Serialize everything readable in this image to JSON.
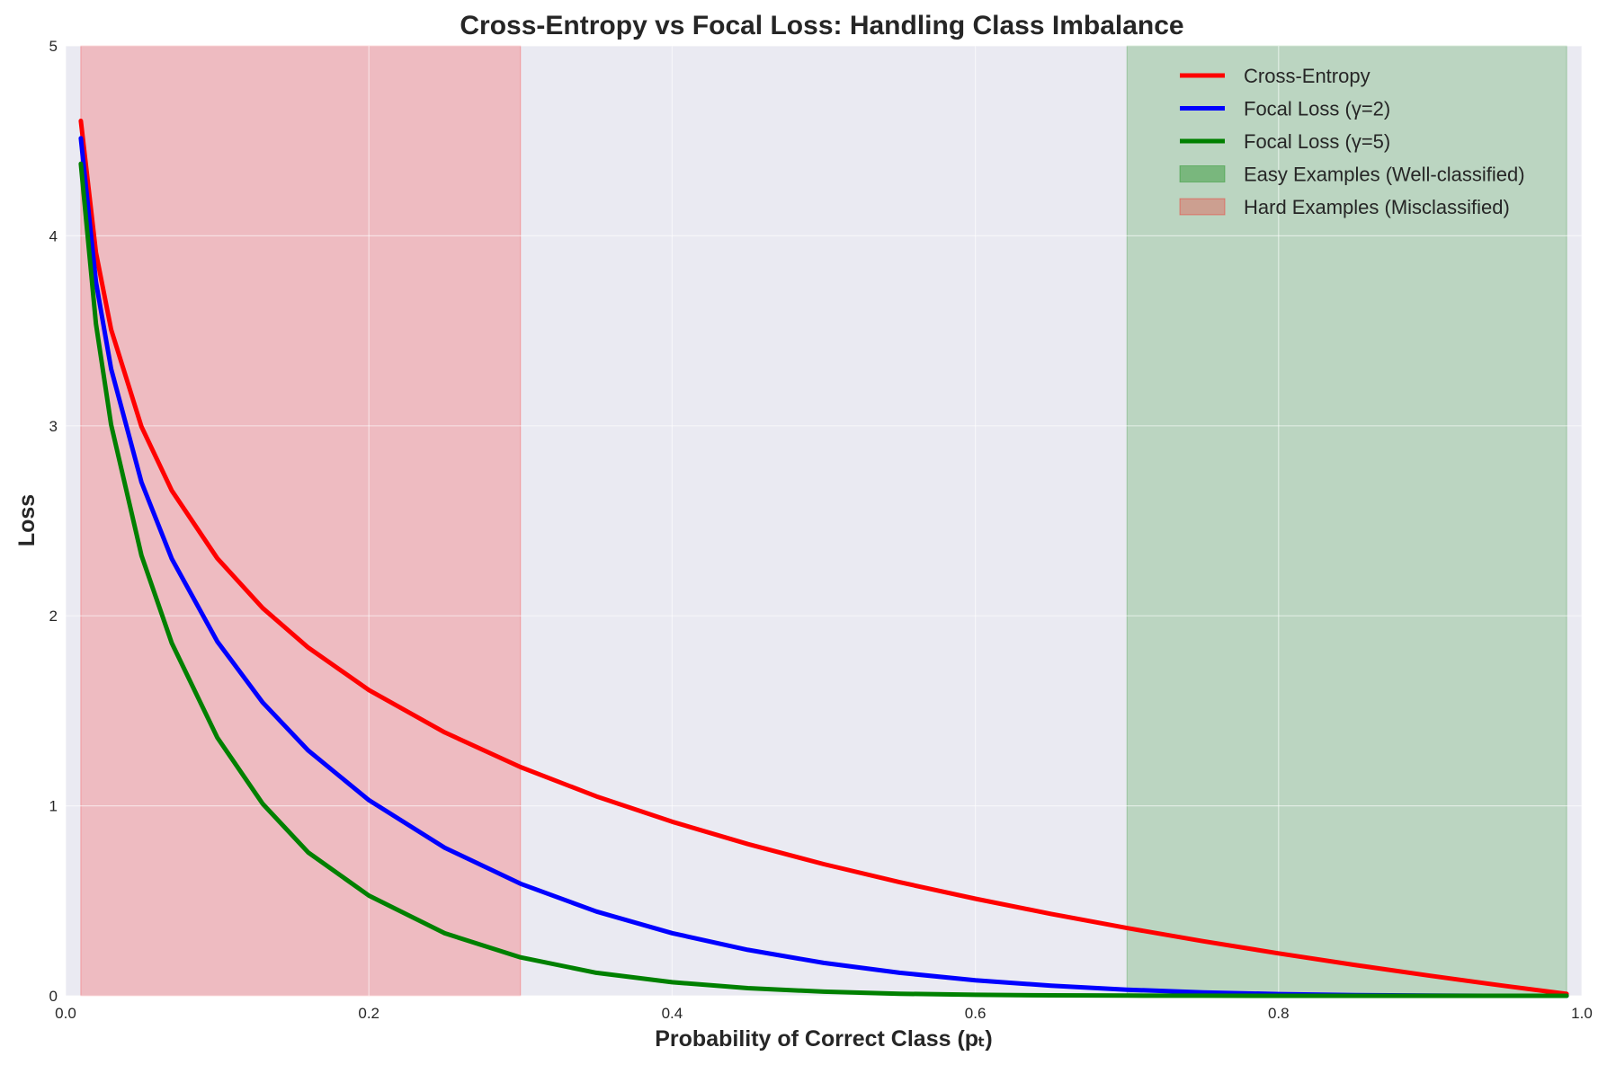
{
  "chart_data": {
    "type": "line",
    "title": "Cross-Entropy vs Focal Loss: Handling Class Imbalance",
    "xlabel": "Probability of Correct Class (pₜ)",
    "ylabel": "Loss",
    "xlim": [
      0,
      1.0
    ],
    "ylim": [
      0,
      5
    ],
    "x_ticks": [
      "0.0",
      "0.2",
      "0.4",
      "0.6",
      "0.8",
      "1.0"
    ],
    "y_ticks": [
      "0",
      "1",
      "2",
      "3",
      "4",
      "5"
    ],
    "grid": true,
    "legend_position": "top-right",
    "x": [
      0.01,
      0.02,
      0.03,
      0.05,
      0.07,
      0.1,
      0.13,
      0.16,
      0.2,
      0.25,
      0.3,
      0.35,
      0.4,
      0.45,
      0.5,
      0.55,
      0.6,
      0.65,
      0.7,
      0.75,
      0.8,
      0.85,
      0.9,
      0.95,
      0.99
    ],
    "series": [
      {
        "name": "Cross-Entropy",
        "color": "#ff0000",
        "values": [
          4.6052,
          3.912,
          3.5066,
          2.9957,
          2.6593,
          2.3026,
          2.0402,
          1.8326,
          1.6094,
          1.3863,
          1.204,
          1.0498,
          0.9163,
          0.7985,
          0.6931,
          0.5978,
          0.5108,
          0.4308,
          0.3567,
          0.2877,
          0.2231,
          0.1625,
          0.1054,
          0.0513,
          0.0101
        ]
      },
      {
        "name": "Focal Loss (γ=2)",
        "color": "#0000ff",
        "values": [
          4.5136,
          3.7571,
          3.2992,
          2.7036,
          2.3003,
          1.8651,
          1.5435,
          1.2911,
          1.03,
          0.7798,
          0.59,
          0.4435,
          0.3299,
          0.2415,
          0.1733,
          0.1211,
          0.0817,
          0.0528,
          0.0321,
          0.018,
          0.0089,
          0.0037,
          0.0011,
          0.0001,
          0.0
        ]
      },
      {
        "name": "Focal Loss (γ=5)",
        "color": "#008000",
        "values": [
          4.3796,
          3.5365,
          3.0052,
          2.3181,
          1.8567,
          1.3597,
          1.0101,
          0.7542,
          0.5274,
          0.329,
          0.2023,
          0.1212,
          0.0712,
          0.0401,
          0.0217,
          0.0109,
          0.0052,
          0.0023,
          0.0009,
          0.0003,
          0.0001,
          0.0,
          0.0,
          0.0,
          0.0
        ]
      }
    ],
    "regions": [
      {
        "name": "Easy Examples (Well-classified)",
        "x_start": 0.7,
        "x_end": 0.99,
        "color": "#008000"
      },
      {
        "name": "Hard Examples (Misclassified)",
        "x_start": 0.01,
        "x_end": 0.3,
        "color": "#ff0000"
      }
    ]
  }
}
